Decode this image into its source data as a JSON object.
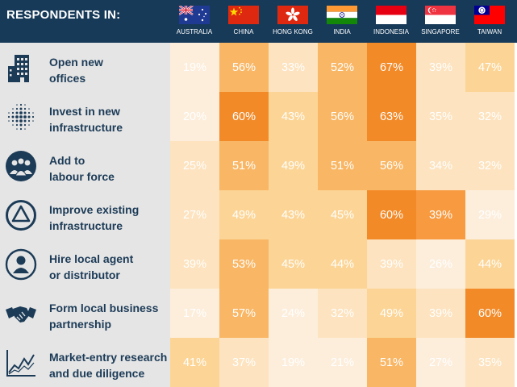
{
  "header": {
    "title": "RESPONDENTS IN:"
  },
  "countries": [
    {
      "name": "AUSTRALIA",
      "flag": "australia-flag"
    },
    {
      "name": "CHINA",
      "flag": "china-flag"
    },
    {
      "name": "HONG KONG",
      "flag": "hong-kong-flag"
    },
    {
      "name": "INDIA",
      "flag": "india-flag"
    },
    {
      "name": "INDONESIA",
      "flag": "indonesia-flag"
    },
    {
      "name": "SINGAPORE",
      "flag": "singapore-flag"
    },
    {
      "name": "TAIWAN",
      "flag": "taiwan-flag"
    }
  ],
  "rows": [
    {
      "label_lines": [
        "Open new",
        "offices"
      ],
      "icon": "office-building-icon"
    },
    {
      "label_lines": [
        "Invest in new",
        "infrastructure"
      ],
      "icon": "dot-network-icon"
    },
    {
      "label_lines": [
        "Add to",
        "labour force"
      ],
      "icon": "people-group-icon"
    },
    {
      "label_lines": [
        "Improve existing",
        "infrastructure"
      ],
      "icon": "triangle-circle-icon"
    },
    {
      "label_lines": [
        "Hire local agent",
        "or distributor"
      ],
      "icon": "person-icon"
    },
    {
      "label_lines": [
        "Form local business",
        "partnership"
      ],
      "icon": "handshake-icon"
    },
    {
      "label_lines": [
        "Market-entry research",
        "and due diligence"
      ],
      "icon": "line-chart-icon"
    }
  ],
  "colors": {
    "header_bg": "#173a59",
    "label_text": "#1c3b57",
    "label_panel_bg": "#e5e5e5",
    "scale": [
      "#fdeedc",
      "#fde3bf",
      "#fcd596",
      "#f9b664",
      "#f79a40",
      "#f28a28"
    ]
  },
  "chart_data": {
    "type": "heatmap",
    "title": "RESPONDENTS IN:",
    "x_categories": [
      "AUSTRALIA",
      "CHINA",
      "HONG KONG",
      "INDIA",
      "INDONESIA",
      "SINGAPORE",
      "TAIWAN"
    ],
    "y_categories": [
      "Open new offices",
      "Invest in new infrastructure",
      "Add to labour force",
      "Improve existing infrastructure",
      "Hire local agent or distributor",
      "Form local business partnership",
      "Market-entry research and due diligence"
    ],
    "unit": "%",
    "values": [
      [
        19,
        56,
        33,
        52,
        67,
        39,
        47
      ],
      [
        20,
        60,
        43,
        56,
        63,
        35,
        32
      ],
      [
        25,
        51,
        49,
        51,
        56,
        34,
        32
      ],
      [
        27,
        49,
        43,
        45,
        60,
        39,
        29
      ],
      [
        39,
        53,
        45,
        44,
        39,
        26,
        44
      ],
      [
        17,
        57,
        24,
        32,
        49,
        39,
        60
      ],
      [
        41,
        37,
        19,
        21,
        51,
        27,
        35
      ]
    ],
    "cell_colors": [
      [
        "#fdeedc",
        "#f9b664",
        "#fde3bf",
        "#f9b664",
        "#f28a28",
        "#fde3bf",
        "#fcd596"
      ],
      [
        "#fdeedc",
        "#f28a28",
        "#fcd596",
        "#f9b664",
        "#f28a28",
        "#fde3bf",
        "#fde3bf"
      ],
      [
        "#fde3bf",
        "#f9b664",
        "#fcd596",
        "#f9b664",
        "#f9b664",
        "#fde3bf",
        "#fde3bf"
      ],
      [
        "#fde3bf",
        "#fcd596",
        "#fcd596",
        "#fcd596",
        "#f28a28",
        "#f79a40",
        "#fdeedc"
      ],
      [
        "#fde3bf",
        "#f9b664",
        "#fcd596",
        "#fcd596",
        "#fde3bf",
        "#fdeedc",
        "#fcd596"
      ],
      [
        "#fdeedc",
        "#f9b664",
        "#fdeedc",
        "#fde3bf",
        "#fcd596",
        "#fde3bf",
        "#f28a28"
      ],
      [
        "#fcd596",
        "#fde3bf",
        "#fdeedc",
        "#fdeedc",
        "#f9b664",
        "#fdeedc",
        "#fde3bf"
      ]
    ]
  }
}
